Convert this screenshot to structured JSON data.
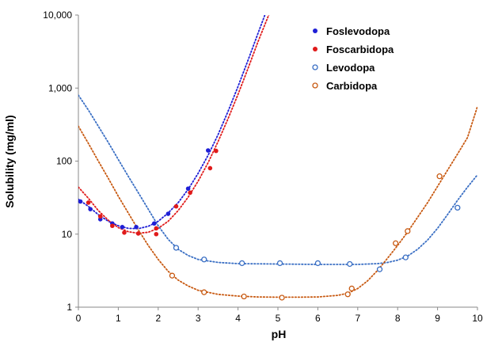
{
  "chart_data": {
    "type": "scatter",
    "xlabel": "pH",
    "ylabel": "Solubility (mg/ml)",
    "xlim": [
      0,
      10
    ],
    "ylim": [
      1,
      10000
    ],
    "yscale": "log",
    "grid": false,
    "legend_position": "top-right",
    "x_ticks": [
      "0",
      "1",
      "2",
      "3",
      "4",
      "5",
      "6",
      "7",
      "8",
      "9",
      "10"
    ],
    "y_ticks": [
      {
        "value": 1,
        "label": "1"
      },
      {
        "value": 10,
        "label": "10"
      },
      {
        "value": 100,
        "label": "100"
      },
      {
        "value": 1000,
        "label": "1,000"
      },
      {
        "value": 10000,
        "label": "10,000"
      }
    ],
    "series": [
      {
        "name": "Foslevodopa",
        "color": "#1f1fd6",
        "marker": "filled",
        "points": [
          [
            0.05,
            28
          ],
          [
            0.3,
            22
          ],
          [
            0.55,
            16
          ],
          [
            0.85,
            14
          ],
          [
            1.1,
            12.5
          ],
          [
            1.45,
            12.5
          ],
          [
            1.9,
            14
          ],
          [
            2.25,
            19
          ],
          [
            2.75,
            42
          ],
          [
            3.25,
            140
          ]
        ],
        "fit": [
          [
            0,
            30
          ],
          [
            0.25,
            24
          ],
          [
            0.5,
            18.5
          ],
          [
            0.75,
            15
          ],
          [
            1,
            13
          ],
          [
            1.25,
            12
          ],
          [
            1.5,
            11.9
          ],
          [
            1.75,
            12.8
          ],
          [
            2,
            15
          ],
          [
            2.25,
            19.5
          ],
          [
            2.5,
            27
          ],
          [
            2.75,
            41
          ],
          [
            3,
            68
          ],
          [
            3.25,
            120
          ],
          [
            3.5,
            230
          ],
          [
            3.75,
            480
          ],
          [
            4,
            1050
          ],
          [
            4.25,
            2400
          ],
          [
            4.5,
            5600
          ],
          [
            4.7,
            11000
          ]
        ]
      },
      {
        "name": "Foscarbidopa",
        "color": "#e01a1a",
        "marker": "filled",
        "points": [
          [
            0.25,
            27
          ],
          [
            0.55,
            17.5
          ],
          [
            0.85,
            13
          ],
          [
            1.15,
            10.5
          ],
          [
            1.5,
            10.2
          ],
          [
            1.95,
            10
          ],
          [
            1.95,
            12
          ],
          [
            2.45,
            24
          ],
          [
            2.8,
            37
          ],
          [
            3.3,
            80
          ],
          [
            3.45,
            138
          ]
        ],
        "fit": [
          [
            0,
            44
          ],
          [
            0.25,
            31
          ],
          [
            0.5,
            21
          ],
          [
            0.75,
            15.5
          ],
          [
            1,
            12.3
          ],
          [
            1.25,
            10.8
          ],
          [
            1.5,
            10.3
          ],
          [
            1.75,
            10.6
          ],
          [
            2,
            12
          ],
          [
            2.25,
            15
          ],
          [
            2.5,
            21
          ],
          [
            2.75,
            32
          ],
          [
            3,
            53
          ],
          [
            3.25,
            95
          ],
          [
            3.5,
            185
          ],
          [
            3.75,
            380
          ],
          [
            4,
            820
          ],
          [
            4.25,
            1850
          ],
          [
            4.5,
            4300
          ],
          [
            4.8,
            11000
          ]
        ]
      },
      {
        "name": "Levodopa",
        "color": "#3a6fc4",
        "marker": "open",
        "points": [
          [
            2.45,
            6.5
          ],
          [
            3.15,
            4.5
          ],
          [
            4.1,
            4
          ],
          [
            5.05,
            4
          ],
          [
            6,
            4
          ],
          [
            6.8,
            3.9
          ],
          [
            7.55,
            3.3
          ],
          [
            8.2,
            4.8
          ],
          [
            9.5,
            23
          ]
        ],
        "fit": [
          [
            0,
            800
          ],
          [
            0.25,
            500
          ],
          [
            0.5,
            300
          ],
          [
            0.75,
            180
          ],
          [
            1,
            105
          ],
          [
            1.25,
            62
          ],
          [
            1.5,
            37
          ],
          [
            1.75,
            22
          ],
          [
            2,
            13
          ],
          [
            2.25,
            8.5
          ],
          [
            2.5,
            6.2
          ],
          [
            2.75,
            5.1
          ],
          [
            3,
            4.5
          ],
          [
            3.5,
            4.1
          ],
          [
            4,
            3.95
          ],
          [
            5,
            3.9
          ],
          [
            6,
            3.85
          ],
          [
            7,
            3.85
          ],
          [
            7.5,
            3.95
          ],
          [
            7.75,
            4.1
          ],
          [
            8,
            4.4
          ],
          [
            8.25,
            5
          ],
          [
            8.5,
            6.2
          ],
          [
            8.75,
            8.3
          ],
          [
            9,
            12
          ],
          [
            9.25,
            18.5
          ],
          [
            9.5,
            29
          ],
          [
            9.75,
            44
          ],
          [
            10,
            65
          ]
        ]
      },
      {
        "name": "Carbidopa",
        "color": "#c85a12",
        "marker": "open",
        "points": [
          [
            2.35,
            2.7
          ],
          [
            3.15,
            1.6
          ],
          [
            4.15,
            1.4
          ],
          [
            5.1,
            1.35
          ],
          [
            6.75,
            1.5
          ],
          [
            6.85,
            1.8
          ],
          [
            7.95,
            7.5
          ],
          [
            8.25,
            11
          ],
          [
            9.05,
            62
          ]
        ],
        "fit": [
          [
            0,
            300
          ],
          [
            0.25,
            175
          ],
          [
            0.5,
            100
          ],
          [
            0.75,
            58
          ],
          [
            1,
            33
          ],
          [
            1.25,
            19.5
          ],
          [
            1.5,
            11.5
          ],
          [
            1.75,
            7
          ],
          [
            2,
            4.5
          ],
          [
            2.25,
            3.1
          ],
          [
            2.5,
            2.35
          ],
          [
            2.75,
            1.95
          ],
          [
            3,
            1.7
          ],
          [
            3.5,
            1.5
          ],
          [
            4,
            1.42
          ],
          [
            4.5,
            1.38
          ],
          [
            5,
            1.37
          ],
          [
            5.5,
            1.37
          ],
          [
            6,
            1.38
          ],
          [
            6.5,
            1.45
          ],
          [
            6.75,
            1.55
          ],
          [
            7,
            1.8
          ],
          [
            7.25,
            2.3
          ],
          [
            7.5,
            3.2
          ],
          [
            7.75,
            4.7
          ],
          [
            8,
            7
          ],
          [
            8.25,
            10.7
          ],
          [
            8.5,
            17
          ],
          [
            8.75,
            27
          ],
          [
            9,
            45
          ],
          [
            9.25,
            75
          ],
          [
            9.5,
            125
          ],
          [
            9.75,
            210
          ],
          [
            10,
            560
          ]
        ]
      }
    ]
  }
}
